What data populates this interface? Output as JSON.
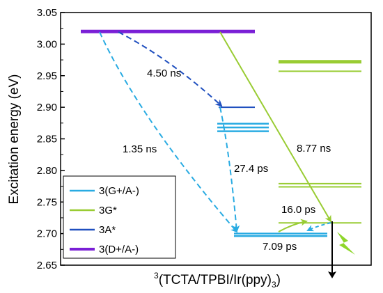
{
  "chart_data": {
    "type": "energy-level-diagram",
    "title": "",
    "ylabel": "Excitation energy (eV)",
    "xlabel": "3(TCTA/TPBI/Ir(ppy)3)",
    "ylim": [
      2.65,
      3.05
    ],
    "y_ticks": [
      "2.65",
      "2.70",
      "2.75",
      "2.80",
      "2.85",
      "2.90",
      "2.95",
      "3.00",
      "3.05"
    ],
    "colors": {
      "charge_transfer_GA": "#29abe2",
      "guest_G": "#99cc33",
      "acceptor_A": "#1f4fbf",
      "charge_transfer_DA": "#7a1fd6"
    },
    "levels": [
      {
        "species": "3(D+/A-)",
        "column": "left",
        "energy": 3.02,
        "color_key": "charge_transfer_DA"
      },
      {
        "species": "3A*",
        "column": "middle",
        "energy": 2.9,
        "color_key": "acceptor_A"
      },
      {
        "species": "3(G+/A-)",
        "column": "middle",
        "energy": 2.874,
        "color_key": "charge_transfer_GA"
      },
      {
        "species": "3(G+/A-)",
        "column": "middle",
        "energy": 2.868,
        "color_key": "charge_transfer_GA"
      },
      {
        "species": "3(G+/A-)",
        "column": "middle",
        "energy": 2.862,
        "color_key": "charge_transfer_GA"
      },
      {
        "species": "3(G+/A-)",
        "column": "middle",
        "energy": 2.7,
        "color_key": "charge_transfer_GA"
      },
      {
        "species": "3(G+/A-)",
        "column": "middle",
        "energy": 2.696,
        "color_key": "charge_transfer_GA"
      },
      {
        "species": "3G*",
        "column": "right",
        "energy": 2.972,
        "color_key": "guest_G"
      },
      {
        "species": "3G*",
        "column": "right",
        "energy": 2.957,
        "color_key": "guest_G"
      },
      {
        "species": "3G*",
        "column": "right",
        "energy": 2.779,
        "color_key": "guest_G"
      },
      {
        "species": "3G*",
        "column": "right",
        "energy": 2.774,
        "color_key": "guest_G"
      },
      {
        "species": "3G*",
        "column": "right",
        "energy": 2.717,
        "color_key": "guest_G"
      }
    ],
    "transitions": [
      {
        "from": "3(D+/A-)",
        "to": "3A*",
        "label": "4.50 ns",
        "style": "dashed",
        "color_key": "acceptor_A"
      },
      {
        "from": "3(D+/A-)",
        "to": "3(G+/A-)",
        "label": "1.35 ns",
        "style": "dashed",
        "color_key": "charge_transfer_GA"
      },
      {
        "from": "3A*",
        "to": "3(G+/A-)",
        "label": "27.4 ps",
        "style": "dashed",
        "color_key": "charge_transfer_GA"
      },
      {
        "from": "3(D+/A-)",
        "to": "3G*",
        "label": "8.77 ns",
        "style": "solid",
        "color_key": "guest_G"
      },
      {
        "from": "3(G+/A-)",
        "to": "3G*",
        "label": "16.0 ps",
        "style": "solid",
        "color_key": "guest_G"
      },
      {
        "from": "3G*",
        "to": "3(G+/A-)",
        "label": "7.09 ps",
        "style": "dashed",
        "color_key": "charge_transfer_GA"
      }
    ],
    "legend": {
      "placement": "bottom-left",
      "entries": [
        {
          "label": "3(G+/A-)",
          "color_key": "charge_transfer_GA"
        },
        {
          "label": "3G*",
          "color_key": "guest_G"
        },
        {
          "label": "3A*",
          "color_key": "acceptor_A"
        },
        {
          "label": "3(D+/A-)",
          "color_key": "charge_transfer_DA"
        }
      ]
    },
    "grid": false
  }
}
